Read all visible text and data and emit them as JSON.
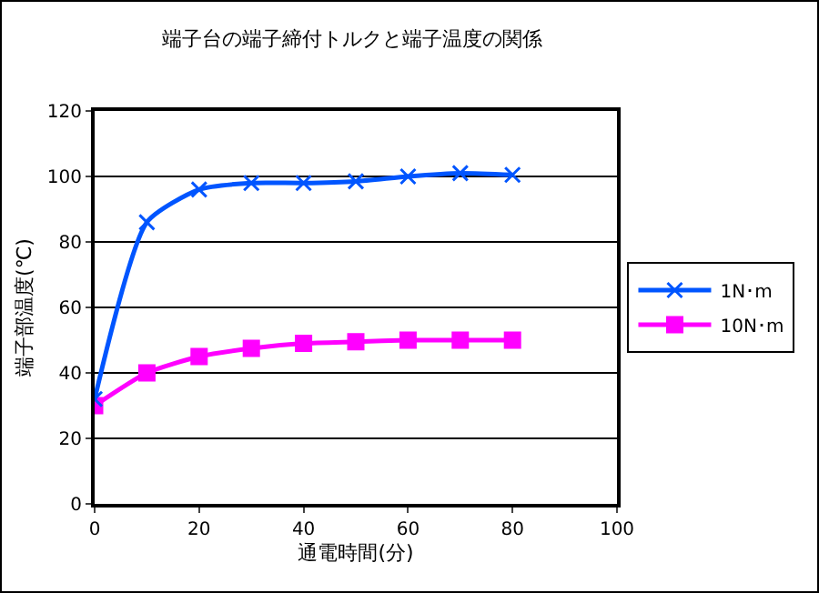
{
  "chart_data": {
    "type": "line",
    "title": "端子台の端子締付トルクと端子温度の関係",
    "xlabel": "通電時間(分)",
    "ylabel": "端子部温度(℃)",
    "x": [
      0,
      10,
      20,
      30,
      40,
      50,
      60,
      70,
      80
    ],
    "series": [
      {
        "name": "1N･m",
        "color": "#0055ff",
        "marker": "cross",
        "values": [
          32,
          86,
          96,
          98,
          98,
          98.5,
          100,
          101,
          100.5
        ]
      },
      {
        "name": "10N･m",
        "color": "#ff00ff",
        "marker": "square",
        "values": [
          30,
          40,
          45,
          47.5,
          49,
          49.5,
          50,
          50,
          50
        ]
      }
    ],
    "xlim": [
      0,
      100
    ],
    "xticks": [
      0,
      20,
      40,
      60,
      80,
      100
    ],
    "ylim": [
      0,
      120
    ],
    "yticks": [
      0,
      20,
      40,
      60,
      80,
      100,
      120
    ],
    "grid": "y",
    "legend": "right",
    "line_style": "solid"
  }
}
